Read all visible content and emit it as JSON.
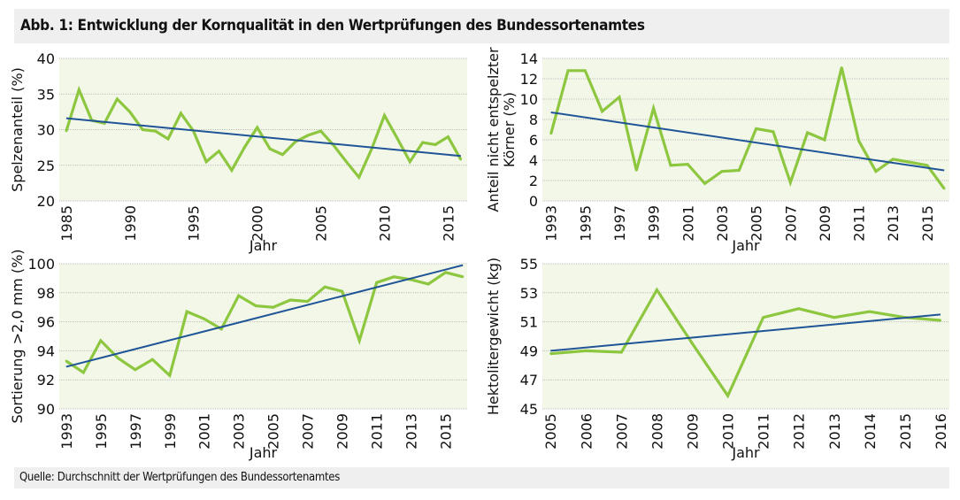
{
  "header": {
    "title": "Abb. 1: Entwicklung der Kornqualität in den Wertprüfungen des Bundessortenamtes"
  },
  "footer": {
    "source": "Quelle: Durchschnitt der Wertprüfungen des Bundessortenamtes"
  },
  "colors": {
    "series": "#8dc63f",
    "trend": "#1f5597",
    "plot_background": "#f3f7e8",
    "grid": "#bfbfbf"
  },
  "chart_data": [
    {
      "type": "line",
      "xlabel": "Jahr",
      "ylabel": [
        "Spelzenanteil (%)"
      ],
      "ylim": [
        20,
        40
      ],
      "yticks": [
        20,
        25,
        30,
        35,
        40
      ],
      "xticks": [
        1985,
        1990,
        1995,
        2000,
        2005,
        2010,
        2015
      ],
      "grid": true,
      "x": [
        1985,
        1986,
        1987,
        1988,
        1989,
        1990,
        1991,
        1992,
        1993,
        1994,
        1995,
        1996,
        1997,
        1998,
        1999,
        2000,
        2001,
        2002,
        2003,
        2004,
        2005,
        2006,
        2007,
        2008,
        2009,
        2010,
        2011,
        2012,
        2013,
        2014,
        2015,
        2016
      ],
      "values": [
        29.8,
        35.6,
        31.3,
        30.9,
        34.3,
        32.5,
        30.0,
        29.8,
        28.7,
        32.3,
        29.8,
        25.5,
        27.0,
        24.3,
        27.5,
        30.3,
        27.3,
        26.5,
        28.3,
        29.2,
        29.8,
        27.8,
        25.5,
        23.3,
        27.3,
        32.0,
        28.8,
        25.5,
        28.2,
        27.9,
        29.0,
        25.8
      ],
      "trend": {
        "x": [
          1985,
          2016
        ],
        "y": [
          31.6,
          26.3
        ]
      }
    },
    {
      "type": "line",
      "xlabel": "Jahr",
      "ylabel": [
        "Anteil nicht entspelzter",
        "Körner (%)"
      ],
      "ylim": [
        0,
        14
      ],
      "yticks": [
        0,
        2,
        4,
        6,
        8,
        10,
        12,
        14
      ],
      "xticks": [
        1993,
        1995,
        1997,
        1999,
        2001,
        2003,
        2005,
        2007,
        2009,
        2011,
        2013,
        2015
      ],
      "grid": true,
      "x": [
        1993,
        1994,
        1995,
        1996,
        1997,
        1998,
        1999,
        2000,
        2001,
        2002,
        2003,
        2004,
        2005,
        2006,
        2007,
        2008,
        2009,
        2010,
        2011,
        2012,
        2013,
        2014,
        2015,
        2016
      ],
      "values": [
        6.6,
        12.8,
        12.8,
        8.8,
        10.2,
        3.0,
        9.1,
        3.5,
        3.6,
        1.7,
        2.9,
        3.0,
        7.1,
        6.8,
        1.8,
        6.7,
        6.0,
        13.1,
        5.9,
        2.9,
        4.1,
        3.8,
        3.5,
        1.2
      ],
      "trend": {
        "x": [
          1993,
          2016
        ],
        "y": [
          8.7,
          3.0
        ]
      }
    },
    {
      "type": "line",
      "xlabel": "Jahr",
      "ylabel": [
        "Sortierung >2,0 mm (%)"
      ],
      "ylim": [
        90,
        100
      ],
      "yticks": [
        90,
        92,
        94,
        96,
        98,
        100
      ],
      "xticks": [
        1993,
        1995,
        1997,
        1999,
        2001,
        2003,
        2005,
        2007,
        2009,
        2011,
        2013,
        2015
      ],
      "grid": true,
      "x": [
        1993,
        1994,
        1995,
        1996,
        1997,
        1998,
        1999,
        2000,
        2001,
        2002,
        2003,
        2004,
        2005,
        2006,
        2007,
        2008,
        2009,
        2010,
        2011,
        2012,
        2013,
        2014,
        2015,
        2016
      ],
      "values": [
        93.3,
        92.5,
        94.7,
        93.5,
        92.7,
        93.4,
        92.3,
        96.7,
        96.2,
        95.5,
        97.8,
        97.1,
        97.0,
        97.5,
        97.4,
        98.4,
        98.1,
        94.7,
        98.7,
        99.1,
        98.9,
        98.6,
        99.4,
        99.1
      ],
      "trend": {
        "x": [
          1993,
          2016
        ],
        "y": [
          92.9,
          99.9
        ]
      }
    },
    {
      "type": "line",
      "xlabel": "Jahr",
      "ylabel": [
        "Hektolitergewicht (kg)"
      ],
      "ylim": [
        45,
        55
      ],
      "yticks": [
        45,
        47,
        49,
        51,
        53,
        55
      ],
      "xticks": [
        2005,
        2006,
        2007,
        2008,
        2009,
        2010,
        2011,
        2012,
        2013,
        2014,
        2015,
        2016
      ],
      "grid": true,
      "x": [
        2005,
        2006,
        2007,
        2008,
        2009,
        2010,
        2011,
        2012,
        2013,
        2014,
        2015,
        2016
      ],
      "values": [
        48.8,
        49.0,
        48.9,
        53.2,
        49.5,
        45.9,
        51.3,
        51.9,
        51.3,
        51.7,
        51.3,
        51.1
      ],
      "trend": {
        "x": [
          2005,
          2016
        ],
        "y": [
          49.0,
          51.5
        ]
      }
    }
  ]
}
